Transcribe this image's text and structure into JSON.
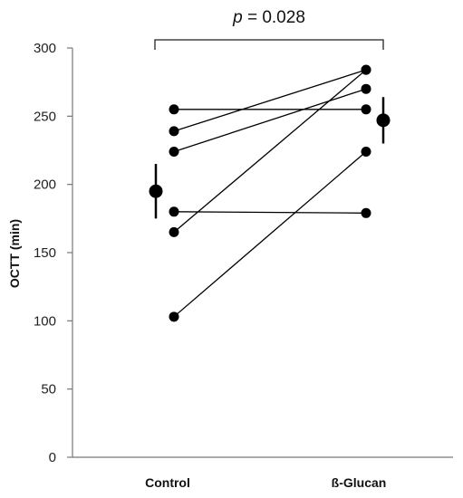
{
  "chart_data": {
    "type": "scatter",
    "subtype": "paired-points",
    "title": "",
    "xlabel": "",
    "ylabel": "OCTT (min)",
    "ylim": [
      0,
      300
    ],
    "yticks": [
      "0",
      "50",
      "100",
      "150",
      "200",
      "250",
      "300"
    ],
    "categories": [
      "Control",
      "ß-Glucan"
    ],
    "pairs": [
      {
        "control": 255,
        "glucan": 255
      },
      {
        "control": 239,
        "glucan": 284
      },
      {
        "control": 224,
        "glucan": 270
      },
      {
        "control": 180,
        "glucan": 179
      },
      {
        "control": 165,
        "glucan": 284
      },
      {
        "control": 103,
        "glucan": 224
      }
    ],
    "summary": [
      {
        "category": "Control",
        "mean": 195,
        "low": 175,
        "high": 215
      },
      {
        "category": "ß-Glucan",
        "mean": 247,
        "low": 230,
        "high": 264
      }
    ],
    "annotation": {
      "italic": "p",
      "text": " = 0.028"
    },
    "grid": false,
    "legend": "none"
  }
}
